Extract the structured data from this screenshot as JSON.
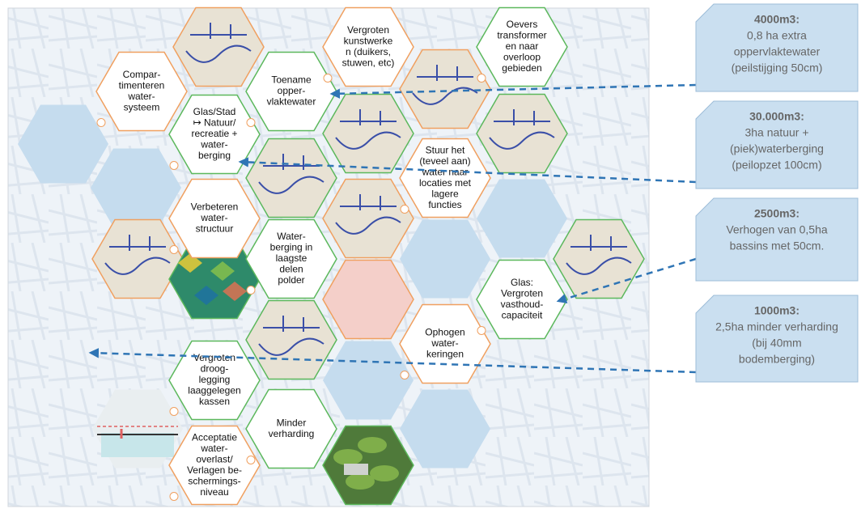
{
  "hexagons": [
    {
      "lines": [
        "Compar-",
        "timenteren",
        "water-",
        "systeem"
      ]
    },
    {
      "lines": [
        "Glas/Stad",
        "↦ Natuur/",
        "recreatie +",
        "water-",
        "berging"
      ]
    },
    {
      "lines": [
        "Verbeteren",
        "water-",
        "structuur"
      ]
    },
    {
      "lines": [
        "Vergroten",
        "droog-",
        "legging",
        "laaggelegen",
        "kassen"
      ]
    },
    {
      "lines": [
        "Acceptatie",
        "water-",
        "overlast/",
        "Verlagen be-",
        "schermings-",
        "niveau"
      ]
    },
    {
      "lines": [
        "Toename",
        "opper-",
        "vlaktewater"
      ]
    },
    {
      "lines": [
        "Water-",
        "berging in",
        "laagste",
        "delen",
        "polder"
      ]
    },
    {
      "lines": [
        "Minder",
        "verharding"
      ]
    },
    {
      "lines": [
        "Vergroten",
        "kunstwerke",
        "n (duikers,",
        "stuwen, etc)"
      ]
    },
    {
      "lines": [
        "Stuur het",
        "(teveel aan)",
        "water naar",
        "locaties met",
        "lagere",
        "functies"
      ]
    },
    {
      "lines": [
        "Ophogen",
        "water-",
        "keringen"
      ]
    },
    {
      "lines": [
        "Oevers",
        "transformer",
        "en naar",
        "overloop",
        "gebieden"
      ]
    },
    {
      "lines": [
        "Glas:",
        "Vergroten",
        "vasthoud-",
        "capaciteit"
      ]
    }
  ],
  "callouts": [
    {
      "title": "4000m3:",
      "lines": [
        "0,8 ha extra",
        "oppervlaktewater",
        "(peilstijging 50cm)"
      ]
    },
    {
      "title": "30.000m3:",
      "lines": [
        "3ha natuur +",
        "(piek)waterberging",
        "(peilopzet 100cm)"
      ]
    },
    {
      "title": "2500m3:",
      "lines": [
        "Verhogen van 0,5ha",
        "bassins met 50cm."
      ]
    },
    {
      "title": "1000m3:",
      "lines": [
        "2,5ha minder verharding",
        "(bij 40mm",
        "bodemberging)"
      ]
    }
  ]
}
